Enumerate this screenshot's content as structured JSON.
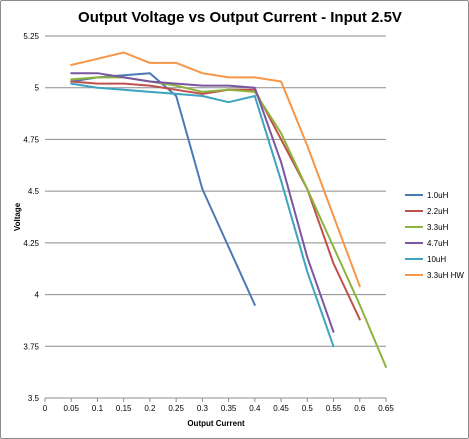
{
  "chart_data": {
    "type": "line",
    "title": "Output Voltage vs Output Current - Input 2.5V",
    "xlabel": "Output Current",
    "ylabel": "Voltage",
    "xlim": [
      0,
      0.65
    ],
    "ylim": [
      3.5,
      5.25
    ],
    "x_ticks": [
      "0",
      "0.05",
      "0.1",
      "0.15",
      "0.2",
      "0.25",
      "0.3",
      "0.35",
      "0.4",
      "0.45",
      "0.5",
      "0.55",
      "0.6",
      "0.65"
    ],
    "y_ticks": [
      "3.5",
      "3.75",
      "4",
      "4.25",
      "4.5",
      "4.75",
      "5",
      "5.25"
    ],
    "grid": "horizontal",
    "legend_position": "right",
    "series": [
      {
        "name": "1.0uH",
        "color": "#4a7ab5",
        "points": [
          [
            0.05,
            5.03
          ],
          [
            0.1,
            5.05
          ],
          [
            0.15,
            5.06
          ],
          [
            0.2,
            5.07
          ],
          [
            0.25,
            4.96
          ],
          [
            0.3,
            4.51
          ],
          [
            0.35,
            4.23
          ],
          [
            0.4,
            3.95
          ]
        ]
      },
      {
        "name": "2.2uH",
        "color": "#c0504d",
        "points": [
          [
            0.05,
            5.03
          ],
          [
            0.1,
            5.02
          ],
          [
            0.15,
            5.02
          ],
          [
            0.2,
            5.01
          ],
          [
            0.25,
            4.99
          ],
          [
            0.3,
            4.97
          ],
          [
            0.35,
            4.99
          ],
          [
            0.4,
            4.99
          ],
          [
            0.45,
            4.75
          ],
          [
            0.5,
            4.51
          ],
          [
            0.55,
            4.15
          ],
          [
            0.6,
            3.88
          ]
        ]
      },
      {
        "name": "3.3uH",
        "color": "#8db33d",
        "points": [
          [
            0.05,
            5.04
          ],
          [
            0.1,
            5.05
          ],
          [
            0.15,
            5.05
          ],
          [
            0.2,
            5.03
          ],
          [
            0.25,
            5.01
          ],
          [
            0.3,
            4.98
          ],
          [
            0.35,
            4.99
          ],
          [
            0.4,
            4.98
          ],
          [
            0.45,
            4.78
          ],
          [
            0.5,
            4.51
          ],
          [
            0.55,
            4.23
          ],
          [
            0.6,
            3.95
          ],
          [
            0.65,
            3.65
          ]
        ]
      },
      {
        "name": "4.7uH",
        "color": "#7a57a0",
        "points": [
          [
            0.05,
            5.07
          ],
          [
            0.1,
            5.07
          ],
          [
            0.15,
            5.05
          ],
          [
            0.2,
            5.03
          ],
          [
            0.25,
            5.02
          ],
          [
            0.3,
            5.01
          ],
          [
            0.35,
            5.01
          ],
          [
            0.4,
            5.0
          ],
          [
            0.45,
            4.64
          ],
          [
            0.5,
            4.18
          ],
          [
            0.55,
            3.82
          ]
        ]
      },
      {
        "name": "10uH",
        "color": "#3ea3bf",
        "points": [
          [
            0.05,
            5.02
          ],
          [
            0.1,
            5.0
          ],
          [
            0.15,
            4.99
          ],
          [
            0.2,
            4.98
          ],
          [
            0.25,
            4.97
          ],
          [
            0.3,
            4.96
          ],
          [
            0.35,
            4.93
          ],
          [
            0.4,
            4.96
          ],
          [
            0.45,
            4.55
          ],
          [
            0.5,
            4.11
          ],
          [
            0.55,
            3.75
          ]
        ]
      },
      {
        "name": "3.3uH HW",
        "color": "#f79646",
        "points": [
          [
            0.05,
            5.11
          ],
          [
            0.1,
            5.14
          ],
          [
            0.15,
            5.17
          ],
          [
            0.2,
            5.12
          ],
          [
            0.25,
            5.12
          ],
          [
            0.3,
            5.07
          ],
          [
            0.35,
            5.05
          ],
          [
            0.4,
            5.05
          ],
          [
            0.45,
            5.03
          ],
          [
            0.5,
            4.72
          ],
          [
            0.55,
            4.38
          ],
          [
            0.6,
            4.04
          ]
        ]
      }
    ]
  }
}
